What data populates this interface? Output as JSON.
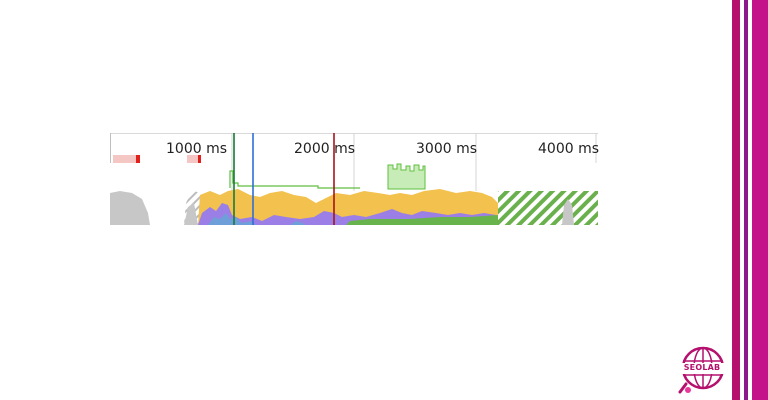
{
  "timeline": {
    "ticks": [
      "1000 ms",
      "2000 ms",
      "3000 ms",
      "4000 ms"
    ],
    "colors": {
      "scripting": "#f2c14e",
      "rendering": "#9b7fe6",
      "painting": "#69b34c",
      "system": "#c7c7c7",
      "loading": "#6f9fd8",
      "fps": "#5fbf3f",
      "dcl_marker": "#1b7a3a",
      "fp_marker": "#2f6fd6",
      "load_marker": "#a5151b",
      "network": "#f4c6c4",
      "network_accent": "#e0201a",
      "idle_hatch": "#6ab04c"
    }
  },
  "brand": {
    "logo_text": "SEOLAB",
    "accent": "#b5106e",
    "accent_dark": "#8c1a8c"
  }
}
